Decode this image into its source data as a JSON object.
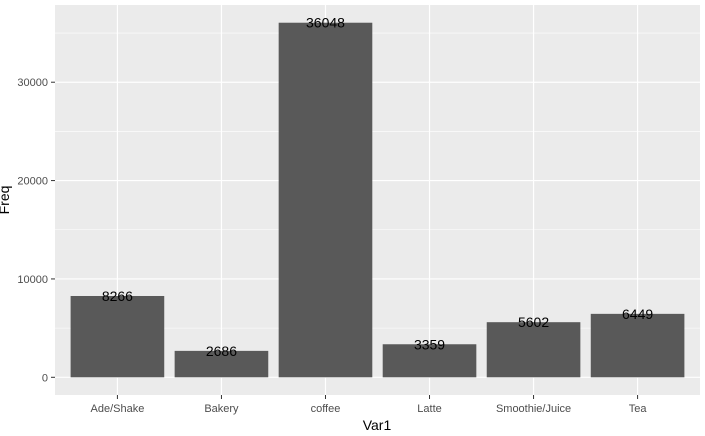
{
  "chart_data": {
    "type": "bar",
    "title": "",
    "xlabel": "Var1",
    "ylabel": "Freq",
    "categories": [
      "Ade/Shake",
      "Bakery",
      "coffee",
      "Latte",
      "Smoothie/Juice",
      "Tea"
    ],
    "values": [
      8266,
      2686,
      36048,
      3359,
      5602,
      6449
    ],
    "data_labels": [
      "8266",
      "2686",
      "36048",
      "3359",
      "5602",
      "6449"
    ],
    "y_ticks": [
      0,
      10000,
      20000,
      30000
    ],
    "y_tick_labels": [
      "0",
      "10000",
      "20000",
      "30000"
    ],
    "ylim": [
      -1800,
      37850
    ],
    "grid": true,
    "legend": "none",
    "colors": {
      "panel": "#ebebeb",
      "grid_major": "#ffffff",
      "bar": "#595959",
      "text": "#000000",
      "tick_text": "#4d4d4d"
    }
  }
}
